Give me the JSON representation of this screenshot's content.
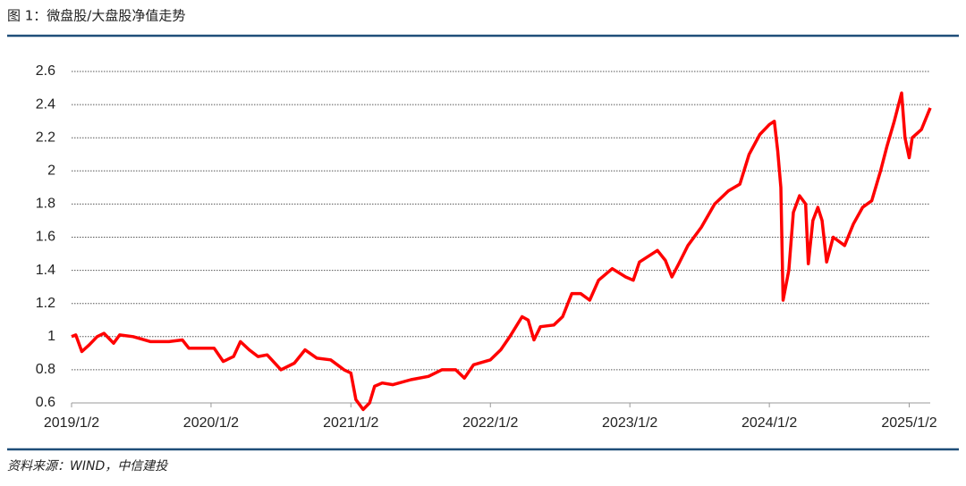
{
  "chart_data": {
    "type": "line",
    "title": "图 1：微盘股/大盘股净值走势",
    "source": "资料来源：WIND，中信建投",
    "x": [
      "2019/1/2",
      "2019/1/13",
      "2019/1/29",
      "2019/2/17",
      "2019/3/10",
      "2019/3/28",
      "2019/4/22",
      "2019/5/8",
      "2019/6/12",
      "2019/7/28",
      "2019/9/14",
      "2019/10/19",
      "2019/11/5",
      "2019/12/5",
      "2020/1/10",
      "2020/2/3",
      "2020/3/1",
      "2020/3/19",
      "2020/4/11",
      "2020/5/4",
      "2020/5/28",
      "2020/7/3",
      "2020/8/7",
      "2020/9/4",
      "2020/10/5",
      "2020/11/10",
      "2020/12/15",
      "2021/1/2",
      "2021/1/15",
      "2021/2/3",
      "2021/2/20",
      "2021/3/5",
      "2021/3/25",
      "2021/4/22",
      "2021/6/8",
      "2021/7/24",
      "2021/8/28",
      "2021/10/3",
      "2021/10/26",
      "2021/11/19",
      "2022/1/2",
      "2022/1/29",
      "2022/2/22",
      "2022/3/26",
      "2022/4/11",
      "2022/4/26",
      "2022/5/13",
      "2022/6/17",
      "2022/7/10",
      "2022/8/3",
      "2022/8/26",
      "2022/9/19",
      "2022/10/12",
      "2022/11/17",
      "2022/12/22",
      "2023/1/11",
      "2023/1/27",
      "2023/3/15",
      "2023/4/5",
      "2023/4/22",
      "2023/5/10",
      "2023/6/3",
      "2023/7/8",
      "2023/8/12",
      "2023/9/17",
      "2023/10/17",
      "2023/11/10",
      "2023/12/8",
      "2024/1/2",
      "2024/1/15",
      "2024/1/24",
      "2024/2/1",
      "2024/2/7",
      "2024/2/22",
      "2024/3/5",
      "2024/3/21",
      "2024/4/6",
      "2024/4/13",
      "2024/4/25",
      "2024/5/8",
      "2024/5/19",
      "2024/5/31",
      "2024/6/17",
      "2024/7/17",
      "2024/8/9",
      "2024/9/2",
      "2024/9/26",
      "2024/10/19",
      "2024/11/5",
      "2024/11/24",
      "2024/12/13",
      "2024/12/22",
      "2025/1/2",
      "2025/1/10",
      "2025/2/3",
      "2025/2/26"
    ],
    "series": [
      {
        "color": "#ff0000",
        "values": [
          1.0,
          1.01,
          0.91,
          0.95,
          1.0,
          1.02,
          0.96,
          1.01,
          1.0,
          0.97,
          0.97,
          0.98,
          0.93,
          0.93,
          0.93,
          0.85,
          0.88,
          0.97,
          0.92,
          0.88,
          0.89,
          0.8,
          0.84,
          0.92,
          0.87,
          0.86,
          0.8,
          0.78,
          0.62,
          0.56,
          0.6,
          0.7,
          0.72,
          0.71,
          0.74,
          0.76,
          0.8,
          0.8,
          0.75,
          0.83,
          0.86,
          0.92,
          1.0,
          1.12,
          1.1,
          0.98,
          1.06,
          1.07,
          1.12,
          1.26,
          1.26,
          1.22,
          1.34,
          1.41,
          1.36,
          1.34,
          1.45,
          1.52,
          1.46,
          1.36,
          1.44,
          1.55,
          1.66,
          1.8,
          1.88,
          1.92,
          2.1,
          2.22,
          2.28,
          2.3,
          2.12,
          1.9,
          1.22,
          1.4,
          1.75,
          1.85,
          1.8,
          1.44,
          1.7,
          1.78,
          1.7,
          1.45,
          1.6,
          1.55,
          1.68,
          1.78,
          1.82,
          2.0,
          2.15,
          2.3,
          2.47,
          2.2,
          2.08,
          2.2,
          2.25,
          2.38
        ]
      }
    ],
    "xlim": [
      "2019/1/2",
      "2025/2/26"
    ],
    "xticks": [
      "2019/1/2",
      "2020/1/2",
      "2021/1/2",
      "2022/1/2",
      "2023/1/2",
      "2024/1/2",
      "2025/1/2"
    ],
    "ylim": [
      0.6,
      2.6
    ],
    "yticks": [
      0.6,
      0.8,
      1,
      1.2,
      1.4,
      1.6,
      1.8,
      2,
      2.2,
      2.4,
      2.6
    ],
    "grid": true
  }
}
